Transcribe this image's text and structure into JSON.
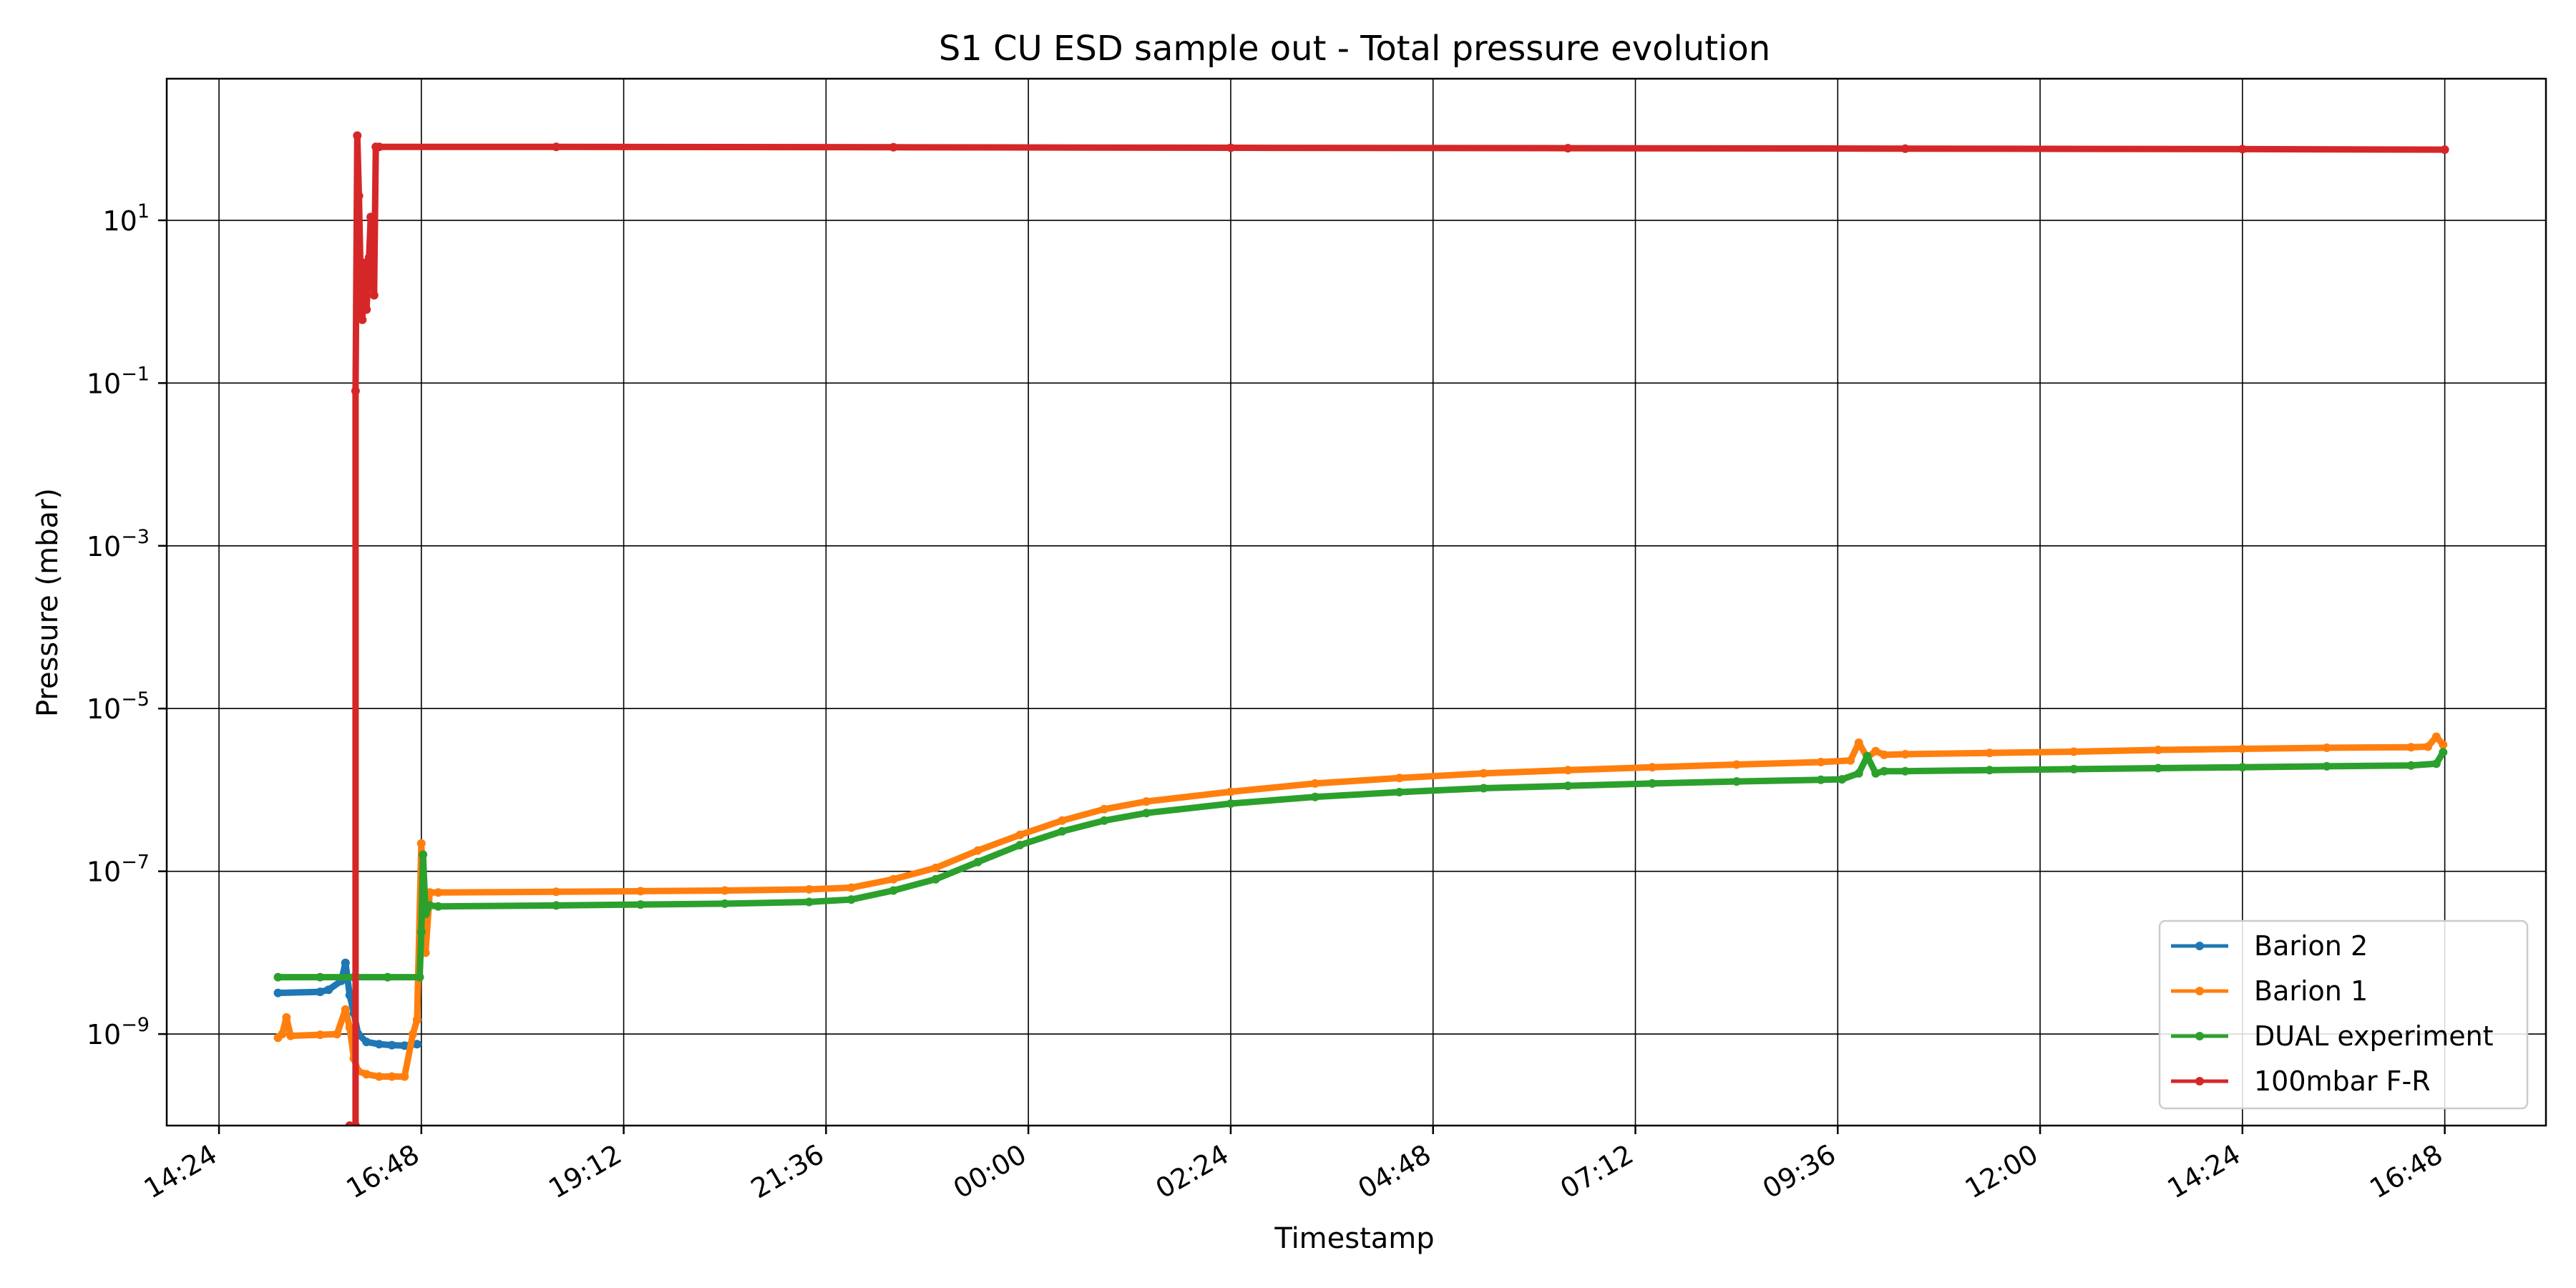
{
  "chart_data": {
    "type": "line",
    "title": "S1 CU ESD sample out - Total pressure evolution",
    "xlabel": "Timestamp",
    "ylabel": "Pressure (mbar)",
    "yscale": "log",
    "ylim": [
      7.5e-11,
      550
    ],
    "xlim": [
      "14:24",
      "18:14 (+1 day)"
    ],
    "x_unit": "hours since 14:24 on the start day",
    "x_ticks": [
      {
        "x": 0.0,
        "label": "14:24"
      },
      {
        "x": 2.4,
        "label": "16:48"
      },
      {
        "x": 4.8,
        "label": "19:12"
      },
      {
        "x": 7.2,
        "label": "21:36"
      },
      {
        "x": 9.6,
        "label": "00:00"
      },
      {
        "x": 12.0,
        "label": "02:24"
      },
      {
        "x": 14.4,
        "label": "04:48"
      },
      {
        "x": 16.8,
        "label": "07:12"
      },
      {
        "x": 19.2,
        "label": "09:36"
      },
      {
        "x": 21.6,
        "label": "12:00"
      },
      {
        "x": 24.0,
        "label": "14:24"
      },
      {
        "x": 26.4,
        "label": "16:48"
      }
    ],
    "y_ticks": [
      {
        "mantissa": "10",
        "exp": "1",
        "value": 10
      },
      {
        "mantissa": "10",
        "exp": "−1",
        "value": 0.1
      },
      {
        "mantissa": "10",
        "exp": "−3",
        "value": 0.001
      },
      {
        "mantissa": "10",
        "exp": "−5",
        "value": 1e-05
      },
      {
        "mantissa": "10",
        "exp": "−7",
        "value": 1e-07
      },
      {
        "mantissa": "10",
        "exp": "−9",
        "value": 1e-09
      }
    ],
    "grid": true,
    "legend_position": "lower right",
    "series": [
      {
        "name": "Barion 2",
        "color": "#1f77b4",
        "x": [
          0.7,
          1.2,
          1.3,
          1.45,
          1.5,
          1.55,
          1.6,
          1.65,
          1.75,
          1.9,
          2.05,
          2.2,
          2.35
        ],
        "y": [
          3.2e-09,
          3.3e-09,
          3.5e-09,
          4.5e-09,
          7.5e-09,
          3e-09,
          1.8e-09,
          1e-09,
          8e-10,
          7.5e-10,
          7.3e-10,
          7.2e-10,
          7.5e-10
        ]
      },
      {
        "name": "Barion 1",
        "color": "#ff7f0e",
        "x": [
          0.7,
          0.75,
          0.8,
          0.85,
          1.2,
          1.4,
          1.5,
          1.55,
          1.6,
          1.65,
          1.75,
          1.9,
          2.05,
          2.2,
          2.3,
          2.35,
          2.4,
          2.45,
          2.5,
          2.6,
          4.0,
          5.0,
          6.0,
          7.0,
          7.5,
          8.0,
          8.5,
          9.0,
          9.5,
          10.0,
          10.5,
          11.0,
          12.0,
          13.0,
          14.0,
          15.0,
          16.0,
          17.0,
          18.0,
          19.0,
          19.35,
          19.45,
          19.55,
          19.65,
          19.75,
          20.0,
          21.0,
          22.0,
          23.0,
          24.0,
          25.0,
          26.0,
          26.2,
          26.3,
          26.38
        ],
        "y": [
          9e-10,
          1e-09,
          1.6e-09,
          9.5e-10,
          9.8e-10,
          1e-09,
          2e-09,
          1.2e-09,
          5e-10,
          3.5e-10,
          3.2e-10,
          3e-10,
          3e-10,
          3e-10,
          1e-09,
          1.5e-09,
          2.2e-07,
          1e-08,
          5.5e-08,
          5.5e-08,
          5.6e-08,
          5.7e-08,
          5.8e-08,
          6e-08,
          6.3e-08,
          8e-08,
          1.1e-07,
          1.8e-07,
          2.8e-07,
          4.2e-07,
          5.8e-07,
          7.2e-07,
          9.5e-07,
          1.2e-06,
          1.4e-06,
          1.6e-06,
          1.75e-06,
          1.9e-06,
          2.05e-06,
          2.2e-06,
          2.3e-06,
          3.8e-06,
          2.5e-06,
          3e-06,
          2.7e-06,
          2.75e-06,
          2.85e-06,
          2.95e-06,
          3.1e-06,
          3.2e-06,
          3.3e-06,
          3.35e-06,
          3.4e-06,
          4.5e-06,
          3.6e-06
        ]
      },
      {
        "name": "DUAL experiment",
        "color": "#2ca02c",
        "x": [
          0.7,
          1.2,
          1.6,
          2.0,
          2.38,
          2.4,
          2.42,
          2.45,
          2.5,
          2.6,
          4.0,
          5.0,
          6.0,
          7.0,
          7.5,
          8.0,
          8.5,
          9.0,
          9.5,
          10.0,
          10.5,
          11.0,
          12.0,
          13.0,
          14.0,
          15.0,
          16.0,
          17.0,
          18.0,
          19.0,
          19.25,
          19.45,
          19.55,
          19.65,
          19.75,
          20.0,
          21.0,
          22.0,
          23.0,
          24.0,
          25.0,
          26.0,
          26.3,
          26.38
        ],
        "y": [
          5e-09,
          5e-09,
          5e-09,
          5e-09,
          5e-09,
          1.8e-08,
          1.6e-07,
          3e-08,
          3.8e-08,
          3.7e-08,
          3.8e-08,
          3.9e-08,
          4e-08,
          4.2e-08,
          4.5e-08,
          5.8e-08,
          8e-08,
          1.3e-07,
          2.1e-07,
          3.1e-07,
          4.2e-07,
          5.2e-07,
          6.8e-07,
          8.2e-07,
          9.4e-07,
          1.05e-06,
          1.12e-06,
          1.2e-06,
          1.27e-06,
          1.33e-06,
          1.35e-06,
          1.6e-06,
          2.6e-06,
          1.6e-06,
          1.7e-06,
          1.7e-06,
          1.75e-06,
          1.8e-06,
          1.85e-06,
          1.9e-06,
          1.95e-06,
          2e-06,
          2.1e-06,
          2.9e-06
        ]
      },
      {
        "name": "100mbar F-R",
        "color": "#d62728",
        "x": [
          1.55,
          1.62,
          1.62,
          1.64,
          1.66,
          1.68,
          1.7,
          1.72,
          1.75,
          1.78,
          1.8,
          1.82,
          1.84,
          1.86,
          1.9,
          4.0,
          8.0,
          12.0,
          16.0,
          20.0,
          24.0,
          26.4
        ],
        "y": [
          7.5e-11,
          7.5e-11,
          0.08,
          110,
          20,
          2.0,
          0.6,
          3.0,
          0.8,
          3.5,
          11,
          3.8,
          1.2,
          80,
          80,
          80,
          79,
          78,
          77,
          76,
          75,
          74
        ]
      }
    ]
  }
}
